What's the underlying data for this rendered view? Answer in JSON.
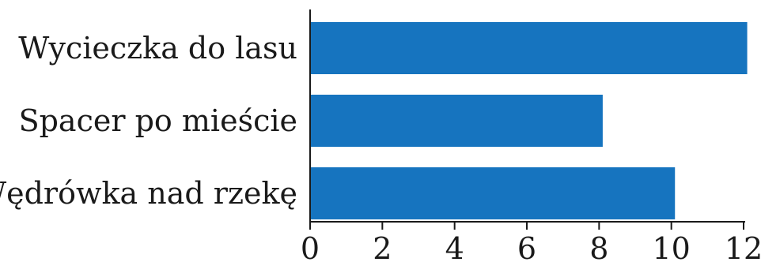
{
  "chart_data": {
    "type": "bar",
    "orientation": "horizontal",
    "title": "",
    "xlabel": "",
    "ylabel": "",
    "categories": [
      "Wycieczka do lasu",
      "Spacer po mieście",
      "Wędrówka nad rzekę"
    ],
    "values": [
      12.1,
      8.1,
      10.1
    ],
    "xlim": [
      0,
      12
    ],
    "xticks": [
      0,
      2,
      4,
      6,
      8,
      10,
      12
    ],
    "grid": false,
    "bar_color": "#1674bf"
  }
}
